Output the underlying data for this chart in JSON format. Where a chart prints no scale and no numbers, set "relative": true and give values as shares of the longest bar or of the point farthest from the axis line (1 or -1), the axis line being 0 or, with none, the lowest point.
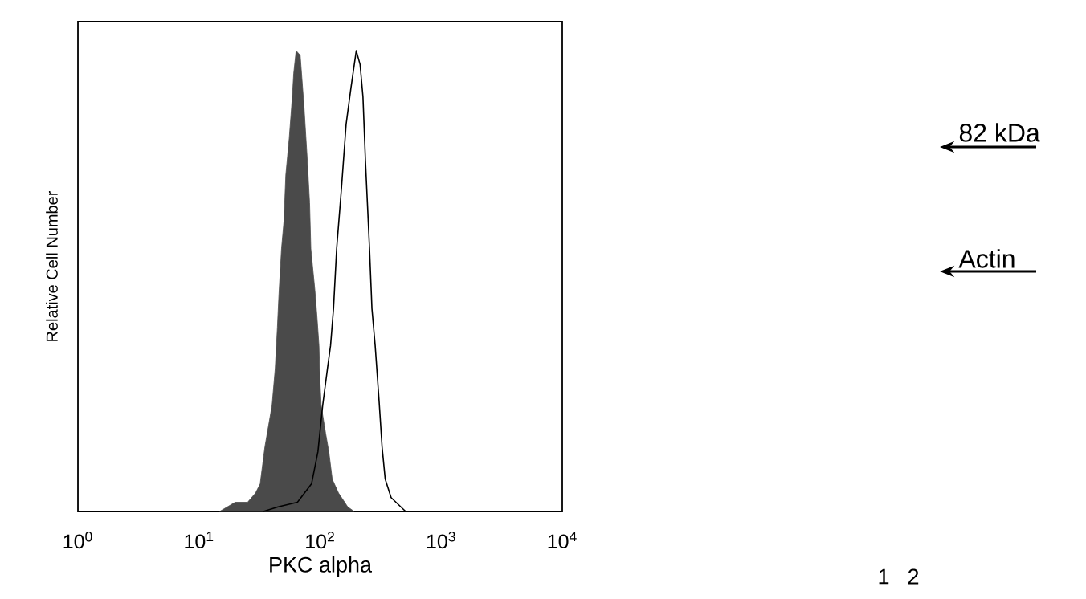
{
  "chart_data": {
    "type": "area",
    "xlabel": "PKC alpha",
    "ylabel": "Relative Cell Number",
    "relative": true,
    "log": "x",
    "xlim": [
      1,
      10000
    ],
    "xticks": [
      {
        "value": 1,
        "label": "10$^{0}$"
      },
      {
        "value": 10,
        "label": "10$^{1}$"
      },
      {
        "value": 100,
        "label": "10$^{2}$"
      },
      {
        "value": 1000,
        "label": "10$^{3}$"
      },
      {
        "value": 10000,
        "label": "10$^{4}$"
      }
    ],
    "tick_labels": "x",
    "series": [
      {
        "color": "#4a4a4a",
        "x": [
          14.8,
          19.9,
          25.2,
          29.3,
          32.0,
          35.0,
          40.1,
          42.6,
          44.4,
          45.7,
          48.0,
          50.3,
          52.1,
          55.6,
          59.0,
          60.5,
          63.4,
          68.5,
          73.6,
          78.1,
          81.9,
          83.9,
          90.6,
          94.4,
          97.9,
          99.5,
          102,
          111,
          118,
          126,
          142,
          169,
          191
        ],
        "values": [
          0,
          0.02,
          0.02,
          0.04,
          0.06,
          0.14,
          0.23,
          0.31,
          0.4,
          0.47,
          0.57,
          0.63,
          0.73,
          0.81,
          0.9,
          0.95,
          1.0,
          0.99,
          0.88,
          0.77,
          0.67,
          0.57,
          0.48,
          0.42,
          0.36,
          0.29,
          0.23,
          0.17,
          0.13,
          0.07,
          0.04,
          0.01,
          0
        ]
      },
      {
        "type": "line",
        "color": "#000000",
        "x": [
          34,
          45,
          65,
          85,
          96,
          105,
          115,
          122,
          129,
          137,
          150,
          164,
          180,
          199,
          214,
          226,
          237,
          256,
          268,
          285,
          307,
          325,
          345,
          386,
          464,
          509
        ],
        "values": [
          0,
          0.01,
          0.02,
          0.06,
          0.13,
          0.23,
          0.31,
          0.36,
          0.44,
          0.57,
          0.7,
          0.84,
          0.92,
          1.0,
          0.97,
          0.9,
          0.76,
          0.57,
          0.44,
          0.36,
          0.24,
          0.14,
          0.07,
          0.03,
          0.01,
          0
        ]
      }
    ],
    "annotations": [
      "82 kDa",
      "Actin",
      "1",
      "2"
    ]
  }
}
